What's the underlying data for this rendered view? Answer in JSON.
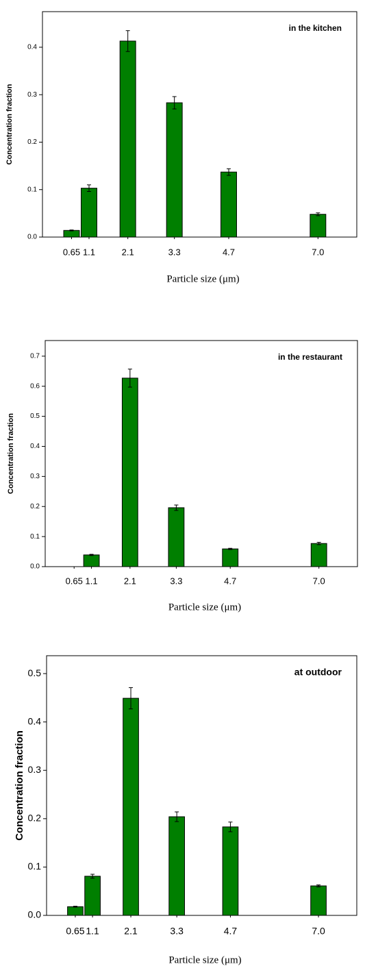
{
  "chart_data": [
    {
      "type": "bar",
      "annotation": "in the kitchen",
      "xlabel": "Particle size (μm)",
      "ylabel": "Concentration fraction",
      "x": [
        0.65,
        1.1,
        2.1,
        3.3,
        4.7,
        7.0
      ],
      "values": [
        0.014,
        0.103,
        0.413,
        0.283,
        0.137,
        0.048
      ],
      "error": [
        0.001,
        0.007,
        0.022,
        0.013,
        0.007,
        0.003
      ],
      "color": "#007f00",
      "xlim": [
        -0.1,
        8.0
      ],
      "xticks": [
        0.65,
        1.1,
        2.1,
        3.3,
        4.7,
        {
          "value": 7.0,
          "label": "7.0"
        }
      ],
      "ylim": [
        0,
        0.475
      ],
      "yticks": [
        {
          "value": 0,
          "label": "0.0"
        },
        0.1,
        0.2,
        0.3,
        0.4
      ]
    },
    {
      "type": "bar",
      "annotation": "in the restaurant",
      "xlabel": "Particle size (μm)",
      "ylabel": "Concentration fraction",
      "x": [
        0.65,
        1.1,
        2.1,
        3.3,
        4.7,
        7.0
      ],
      "values": [
        null,
        0.039,
        0.627,
        0.196,
        0.059,
        0.077
      ],
      "error": [
        null,
        0.002,
        0.03,
        0.009,
        0.002,
        0.004
      ],
      "color": "#007f00",
      "xlim": [
        -0.1,
        8.0
      ],
      "xticks": [
        0.65,
        1.1,
        2.1,
        3.3,
        4.7,
        {
          "value": 7.0,
          "label": "7.0"
        }
      ],
      "ylim": [
        0,
        0.752
      ],
      "yticks": [
        {
          "value": 0,
          "label": "0.0"
        },
        0.1,
        0.2,
        0.3,
        0.4,
        0.5,
        0.6,
        0.7
      ]
    },
    {
      "type": "bar",
      "annotation": "at outdoor",
      "xlabel": "Particle size (μm)",
      "ylabel": "Concentration fraction",
      "x": [
        0.65,
        1.1,
        2.1,
        3.3,
        4.7,
        7.0
      ],
      "values": [
        0.018,
        0.081,
        0.449,
        0.204,
        0.183,
        0.061
      ],
      "error": [
        0.001,
        0.004,
        0.022,
        0.01,
        0.01,
        0.002
      ],
      "color": "#007f00",
      "xlim": [
        -0.1,
        8.0
      ],
      "xticks": [
        0.65,
        1.1,
        2.1,
        3.3,
        4.7,
        {
          "value": 7.0,
          "label": "7.0"
        }
      ],
      "ylim": [
        0,
        0.537
      ],
      "yticks": [
        {
          "value": 0,
          "label": "0.0"
        },
        0.1,
        0.2,
        0.3,
        0.4,
        0.5
      ]
    }
  ]
}
